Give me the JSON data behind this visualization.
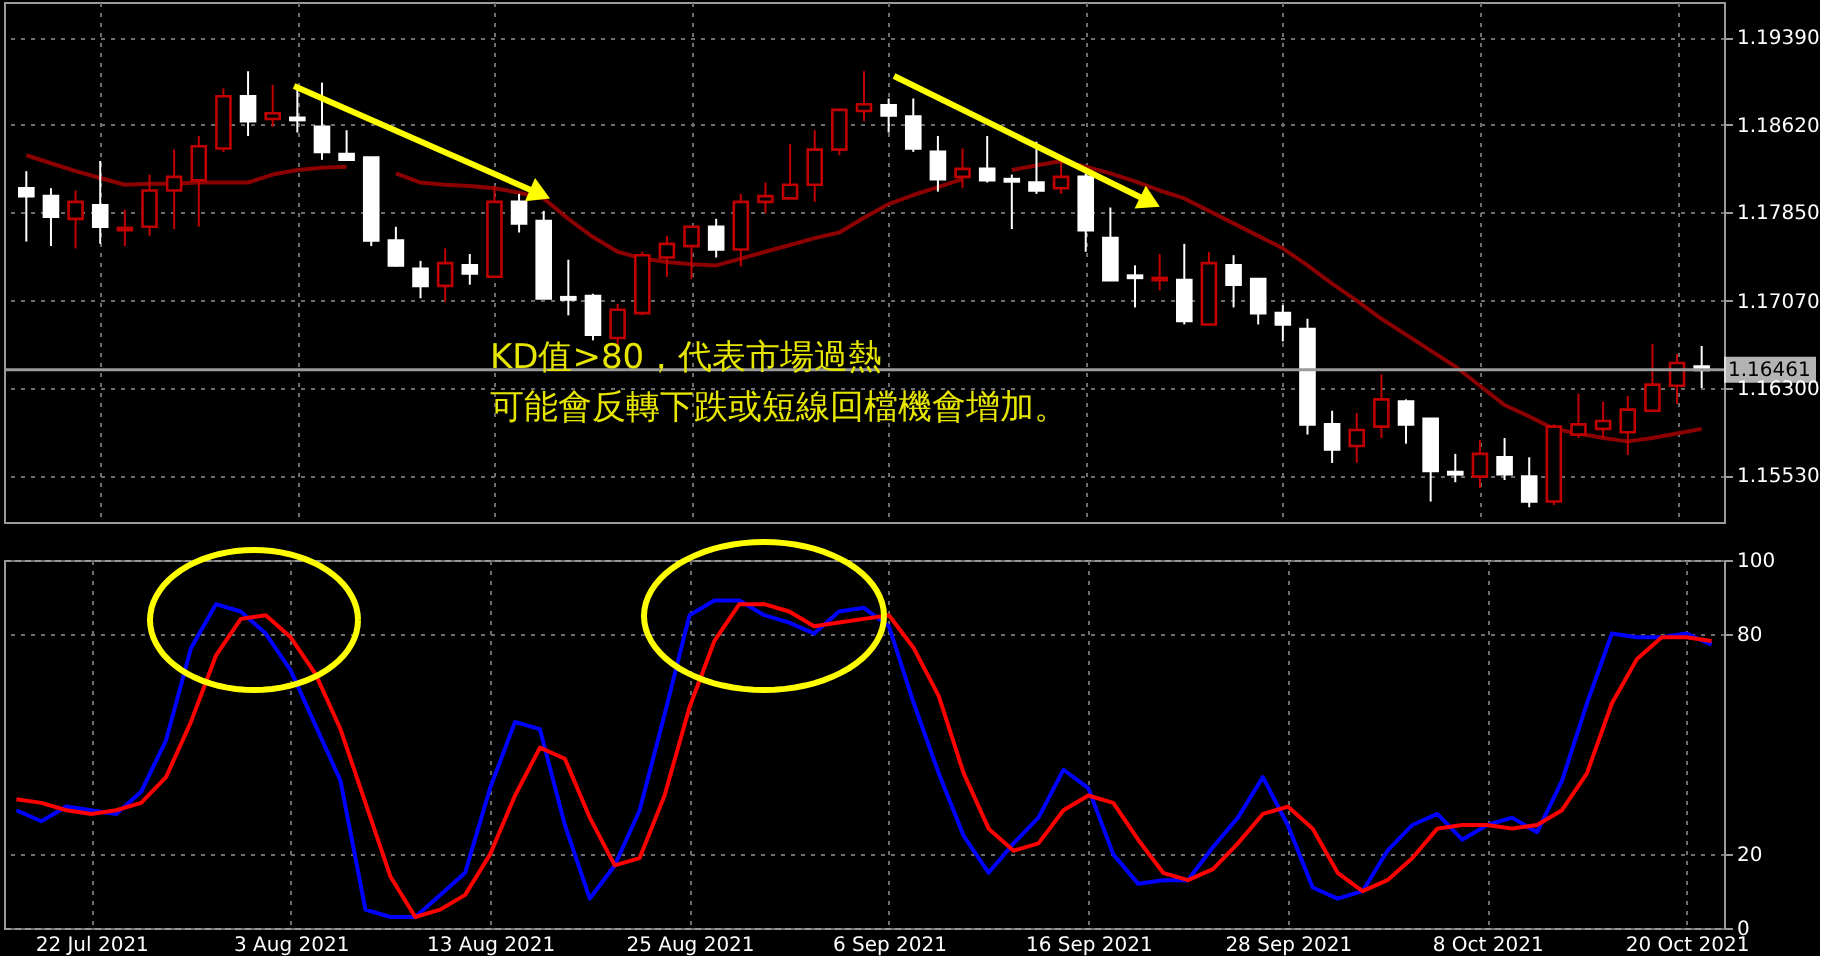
{
  "chart_data": [
    {
      "type": "candlestick",
      "categories": [
        null,
        null,
        null,
        null,
        null,
        null,
        null,
        null,
        null,
        null,
        null,
        null,
        null,
        null,
        null,
        null,
        null,
        null,
        null,
        null,
        null,
        null,
        null,
        null,
        null,
        null,
        null,
        null,
        null,
        null,
        null,
        null,
        null,
        null,
        null,
        null,
        null,
        null,
        null,
        null,
        null,
        null,
        null,
        null,
        null,
        null,
        null,
        null,
        null,
        null,
        null,
        null,
        null,
        null,
        null,
        null,
        null,
        null,
        null,
        null,
        null,
        null,
        null,
        null,
        null,
        null,
        null,
        null,
        null
      ],
      "ohlc": [
        [
          1.1806,
          1.1821,
          1.1759,
          1.1799
        ],
        [
          1.1799,
          1.1806,
          1.1755,
          1.1781
        ],
        [
          1.1779,
          1.1804,
          1.1753,
          1.1794
        ],
        [
          1.1791,
          1.183,
          1.1757,
          1.1772
        ],
        [
          1.1769,
          1.1787,
          1.1755,
          1.1771
        ],
        [
          1.1772,
          1.1818,
          1.1764,
          1.1804
        ],
        [
          1.1804,
          1.184,
          1.177,
          1.1816
        ],
        [
          1.1813,
          1.1852,
          1.1772,
          1.1843
        ],
        [
          1.1841,
          1.1894,
          1.1838,
          1.1887
        ],
        [
          1.1887,
          1.1909,
          1.1852,
          1.1865
        ],
        [
          1.1867,
          1.1897,
          1.186,
          1.1872
        ],
        [
          1.1868,
          1.1894,
          1.1855,
          1.1866
        ],
        [
          1.186,
          1.1899,
          1.1831,
          1.1838
        ],
        [
          1.1836,
          1.1857,
          1.183,
          1.1831
        ],
        [
          1.1833,
          1.1833,
          1.1755,
          1.176
        ],
        [
          1.176,
          1.1772,
          1.1737,
          1.1738
        ],
        [
          1.1735,
          1.1742,
          1.1709,
          1.172
        ],
        [
          1.172,
          1.1753,
          1.1706,
          1.174
        ],
        [
          1.1738,
          1.1748,
          1.1721,
          1.1731
        ],
        [
          1.1728,
          1.1808,
          1.1728,
          1.1794
        ],
        [
          1.1794,
          1.1801,
          1.1767,
          1.1775
        ],
        [
          1.1777,
          1.1786,
          1.1709,
          1.1709
        ],
        [
          1.171,
          1.1743,
          1.1694,
          1.1708
        ],
        [
          1.1711,
          1.1713,
          1.1672,
          1.1677
        ],
        [
          1.1674,
          1.1704,
          1.1665,
          1.1699
        ],
        [
          1.1696,
          1.175,
          1.1694,
          1.1747
        ],
        [
          1.1745,
          1.1764,
          1.1728,
          1.1757
        ],
        [
          1.1755,
          1.1772,
          1.1726,
          1.1772
        ],
        [
          1.1772,
          1.1779,
          1.1745,
          1.1752
        ],
        [
          1.1752,
          1.1801,
          1.1737,
          1.1794
        ],
        [
          1.1794,
          1.1811,
          1.1784,
          1.1799
        ],
        [
          1.1797,
          1.1845,
          1.1797,
          1.1809
        ],
        [
          1.1809,
          1.1857,
          1.1794,
          1.184
        ],
        [
          1.184,
          1.1875,
          1.1835,
          1.1875
        ],
        [
          1.1874,
          1.1909,
          1.1865,
          1.188
        ],
        [
          1.1879,
          1.1885,
          1.1855,
          1.187
        ],
        [
          1.1869,
          1.1885,
          1.1838,
          1.1841
        ],
        [
          1.1838,
          1.1852,
          1.1803,
          1.1814
        ],
        [
          1.1816,
          1.1841,
          1.1806,
          1.1823
        ],
        [
          1.1823,
          1.1852,
          1.1811,
          1.1813
        ],
        [
          1.1814,
          1.1818,
          1.177,
          1.1812
        ],
        [
          1.1811,
          1.1847,
          1.1801,
          1.1804
        ],
        [
          1.1806,
          1.183,
          1.1801,
          1.1816
        ],
        [
          1.1816,
          1.1819,
          1.175,
          1.1769
        ],
        [
          1.1762,
          1.1789,
          1.1725,
          1.1725
        ],
        [
          1.1729,
          1.1738,
          1.1701,
          1.1727
        ],
        [
          1.1725,
          1.1748,
          1.1716,
          1.1727
        ],
        [
          1.1725,
          1.1757,
          1.1686,
          1.1689
        ],
        [
          1.1686,
          1.175,
          1.1686,
          1.174
        ],
        [
          1.1738,
          1.1747,
          1.1701,
          1.1721
        ],
        [
          1.1726,
          1.1726,
          1.1686,
          1.1696
        ],
        [
          1.1696,
          1.1703,
          1.1671,
          1.1686
        ],
        [
          1.1682,
          1.1691,
          1.1589,
          1.1598
        ],
        [
          1.1598,
          1.161,
          1.1564,
          1.1576
        ],
        [
          1.1579,
          1.1608,
          1.1564,
          1.1593
        ],
        [
          1.1596,
          1.1642,
          1.1586,
          1.162
        ],
        [
          1.1618,
          1.162,
          1.1581,
          1.1598
        ],
        [
          1.1603,
          1.1603,
          1.153,
          1.1557
        ],
        [
          1.1556,
          1.1572,
          1.1547,
          1.1554
        ],
        [
          1.1552,
          1.1584,
          1.1542,
          1.1572
        ],
        [
          1.1569,
          1.1586,
          1.1549,
          1.1554
        ],
        [
          1.1552,
          1.1569,
          1.1525,
          1.153
        ],
        [
          1.153,
          1.1598,
          1.1527,
          1.1596
        ],
        [
          1.1589,
          1.1625,
          1.1586,
          1.1598
        ],
        [
          1.1594,
          1.1618,
          1.1586,
          1.1601
        ],
        [
          1.1591,
          1.1623,
          1.1571,
          1.1611
        ],
        [
          1.161,
          1.1669,
          1.161,
          1.1633
        ],
        [
          1.1632,
          1.166,
          1.1616,
          1.1652
        ],
        [
          1.1649,
          1.1667,
          1.163,
          1.1646
        ]
      ],
      "colors": [
        "#ffffff",
        "#ffffff",
        "#c00000",
        "#ffffff",
        "#c00000",
        "#c00000",
        "#c00000",
        "#c00000",
        "#c00000",
        "#ffffff",
        "#c00000",
        "#ffffff",
        "#ffffff",
        "#ffffff",
        "#ffffff",
        "#ffffff",
        "#ffffff",
        "#c00000",
        "#ffffff",
        "#c00000",
        "#ffffff",
        "#ffffff",
        "#ffffff",
        "#ffffff",
        "#c00000",
        "#c00000",
        "#c00000",
        "#c00000",
        "#ffffff",
        "#c00000",
        "#c00000",
        "#c00000",
        "#c00000",
        "#c00000",
        "#c00000",
        "#ffffff",
        "#ffffff",
        "#ffffff",
        "#c00000",
        "#ffffff",
        "#ffffff",
        "#ffffff",
        "#c00000",
        "#ffffff",
        "#ffffff",
        "#ffffff",
        "#c00000",
        "#ffffff",
        "#c00000",
        "#ffffff",
        "#ffffff",
        "#ffffff",
        "#ffffff",
        "#ffffff",
        "#c00000",
        "#c00000",
        "#ffffff",
        "#ffffff",
        "#ffffff",
        "#c00000",
        "#ffffff",
        "#ffffff",
        "#c00000",
        "#c00000",
        "#c00000",
        "#c00000",
        "#c00000",
        "#c00000",
        "#ffffff"
      ],
      "series": [
        {
          "type": "line",
          "color": "#8b0000",
          "values": [
            1.1835,
            1.1828,
            1.1821,
            1.1815,
            1.1809,
            1.181,
            1.181,
            1.1811,
            1.1811,
            1.1811,
            1.1818,
            1.1822,
            1.1824,
            1.1825,
            null,
            1.1819,
            1.1811,
            1.1809,
            1.1808,
            1.1806,
            1.1802,
            1.1797,
            1.1779,
            1.1763,
            1.175,
            1.1744,
            1.1741,
            1.1739,
            1.1738,
            1.1744,
            1.175,
            1.1756,
            1.1762,
            1.1767,
            1.178,
            1.1792,
            1.18,
            1.1807,
            1.1814,
            null,
            1.1822,
            1.1826,
            1.183,
            1.1825,
            1.1819,
            1.1812,
            1.1804,
            1.1797,
            1.1786,
            1.1775,
            1.1764,
            1.1753,
            1.1738,
            1.1722,
            1.1707,
            1.1691,
            1.1677,
            1.1663,
            1.1649,
            1.1632,
            1.1615,
            1.1605,
            1.1594,
            1.159,
            1.1586,
            1.1583,
            1.1586,
            1.159,
            1.1594
          ]
        }
      ],
      "ylim": [
        1.1512,
        1.197
      ],
      "yticks": [
        {
          "value": 1.1939,
          "label": "1.19390"
        },
        {
          "value": 1.1862,
          "label": "1.18620"
        },
        {
          "value": 1.1785,
          "label": "1.17850"
        },
        {
          "value": 1.1707,
          "label": "1.17070"
        },
        {
          "value": 1.163,
          "label": "1.16300"
        },
        {
          "value": 1.1553,
          "label": "1.15530"
        }
      ],
      "grid": true,
      "tick_labels": "y",
      "ref_lines": [
        {
          "axis": "y",
          "value": 1.16461,
          "label": "1.16461",
          "color": "#9a9a9a"
        }
      ],
      "annotations": [
        "KD值>80，代表市場過熱",
        "可能會反轉下跌或短線回檔機會增加。"
      ]
    },
    {
      "type": "line",
      "categories": [
        null,
        null,
        null,
        "22 Jul 2021",
        null,
        null,
        null,
        null,
        null,
        null,
        null,
        "3 Aug 2021",
        null,
        null,
        null,
        null,
        null,
        null,
        null,
        "13 Aug 2021",
        null,
        null,
        null,
        null,
        null,
        null,
        null,
        "25 Aug 2021",
        null,
        null,
        null,
        null,
        null,
        null,
        null,
        "6 Sep 2021",
        null,
        null,
        null,
        null,
        null,
        null,
        null,
        "16 Sep 2021",
        null,
        null,
        null,
        null,
        null,
        null,
        null,
        "28 Sep 2021",
        null,
        null,
        null,
        null,
        null,
        null,
        null,
        "8 Oct 2021",
        null,
        null,
        null,
        null,
        null,
        null,
        null,
        "20 Oct 2021",
        null
      ],
      "series": [
        {
          "color": "#0000ff",
          "values": [
            32,
            29,
            33,
            32,
            31,
            37,
            51,
            76,
            88,
            86,
            80,
            70,
            55,
            40,
            5,
            3,
            3,
            9,
            15,
            38,
            56,
            54,
            28,
            8,
            17,
            32,
            58,
            85,
            89,
            89,
            85,
            83,
            80,
            86,
            87,
            82,
            61,
            42,
            25,
            15,
            23,
            30,
            43,
            38,
            20,
            12,
            13,
            13,
            22,
            30,
            41,
            28,
            11,
            8,
            10,
            21,
            28,
            31,
            24,
            28,
            30,
            26,
            40,
            61,
            80,
            79,
            79,
            80,
            77
          ]
        },
        {
          "color": "#ff0000",
          "values": [
            35,
            34,
            32,
            31,
            32,
            34,
            41,
            56,
            74,
            84,
            85,
            79,
            69,
            54,
            34,
            14,
            3,
            5,
            9,
            20,
            36,
            49,
            46,
            30,
            17,
            19,
            36,
            60,
            78,
            88,
            88,
            86,
            82,
            83,
            84,
            85,
            76,
            63,
            42,
            27,
            21,
            23,
            32,
            36,
            34,
            24,
            15,
            13,
            16,
            23,
            31,
            33,
            27,
            15,
            10,
            13,
            19,
            27,
            28,
            28,
            27,
            28,
            32,
            42,
            61,
            73,
            79,
            79,
            78
          ]
        }
      ],
      "ylim": [
        0,
        100
      ],
      "yticks": [
        0,
        20,
        80,
        100
      ],
      "grid": true
    }
  ]
}
